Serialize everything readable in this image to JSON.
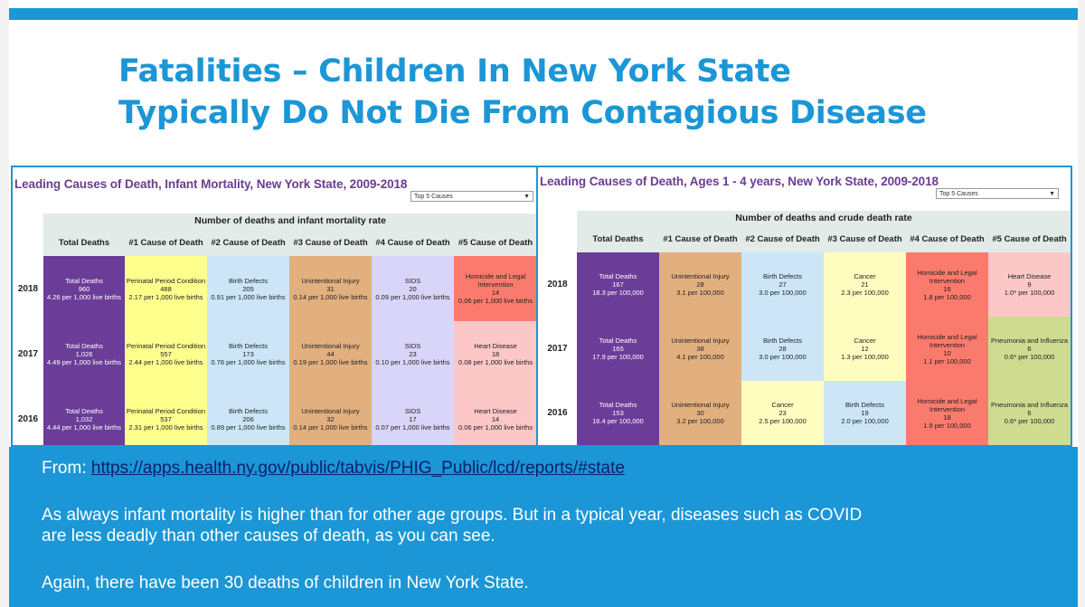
{
  "title": {
    "line1": "Fatalities – Children In New York State",
    "line2": "Typically Do Not Die From Contagious Disease"
  },
  "colors": {
    "accent": "#1b96d6",
    "total": "#6b3d98",
    "perinatal": "#ffff8e",
    "birth_defects": "#cce6f7",
    "unintentional": "#e2b07e",
    "sids": "#d8d5f8",
    "homicide": "#fa7b6d",
    "heart": "#fcc7c7",
    "cancer": "#fffcc0",
    "pneumonia": "#cfdb90"
  },
  "tables": [
    {
      "title": "Leading Causes of Death, Infant Mortality, New York State, 2009-2018",
      "select": "Top 5 Causes",
      "super_header": "Number of deaths and infant mortality rate",
      "headers": [
        "Total Deaths",
        "#1 Cause of Death",
        "#2 Cause of Death",
        "#3 Cause of Death",
        "#4 Cause of Death",
        "#5 Cause of Death"
      ],
      "rows": [
        {
          "year": "2018",
          "cells": [
            {
              "lines": [
                "Total Deaths",
                "960",
                "4.26 per 1,000 live births"
              ],
              "color": "total"
            },
            {
              "lines": [
                "Perinatal Period Condition",
                "488",
                "2.17 per 1,000 live births"
              ],
              "color": "perinatal"
            },
            {
              "lines": [
                "Birth Defects",
                "205",
                "0.91 per 1,000 live births"
              ],
              "color": "birth_defects"
            },
            {
              "lines": [
                "Unintentional Injury",
                "31",
                "0.14 per 1,000 live births"
              ],
              "color": "unintentional"
            },
            {
              "lines": [
                "SIDS",
                "20",
                "0.09 per 1,000 live births"
              ],
              "color": "sids"
            },
            {
              "lines": [
                "Homicide and Legal Intervention",
                "14",
                "0.06 per 1,000 live births"
              ],
              "color": "homicide"
            }
          ]
        },
        {
          "year": "2017",
          "cells": [
            {
              "lines": [
                "Total Deaths",
                "1,026",
                "4.49 per 1,000 live births"
              ],
              "color": "total"
            },
            {
              "lines": [
                "Perinatal Period Condition",
                "557",
                "2.44 per 1,000 live births"
              ],
              "color": "perinatal"
            },
            {
              "lines": [
                "Birth Defects",
                "173",
                "0.76 per 1,000 live births"
              ],
              "color": "birth_defects"
            },
            {
              "lines": [
                "Unintentional Injury",
                "44",
                "0.19 per 1,000 live births"
              ],
              "color": "unintentional"
            },
            {
              "lines": [
                "SIDS",
                "23",
                "0.10 per 1,000 live births"
              ],
              "color": "sids"
            },
            {
              "lines": [
                "Heart Disease",
                "18",
                "0.08 per 1,000 live births"
              ],
              "color": "heart"
            }
          ]
        },
        {
          "year": "2016",
          "cells": [
            {
              "lines": [
                "Total Deaths",
                "1,032",
                "4.44 per 1,000 live births"
              ],
              "color": "total"
            },
            {
              "lines": [
                "Perinatal Period Condition",
                "537",
                "2.31 per 1,000 live births"
              ],
              "color": "perinatal"
            },
            {
              "lines": [
                "Birth Defects",
                "206",
                "0.89 per 1,000 live births"
              ],
              "color": "birth_defects"
            },
            {
              "lines": [
                "Unintentional Injury",
                "32",
                "0.14 per 1,000 live births"
              ],
              "color": "unintentional"
            },
            {
              "lines": [
                "SIDS",
                "17",
                "0.07 per 1,000 live births"
              ],
              "color": "sids"
            },
            {
              "lines": [
                "Heart Disease",
                "14",
                "0.06 per 1,000 live births"
              ],
              "color": "heart"
            }
          ]
        }
      ]
    },
    {
      "title": "Leading Causes of Death, Ages 1 - 4 years, New York State, 2009-2018",
      "select": "Top 5 Causes",
      "super_header": "Number of deaths and crude death rate",
      "headers": [
        "Total Deaths",
        "#1 Cause of Death",
        "#2 Cause of Death",
        "#3 Cause of Death",
        "#4 Cause of Death",
        "#5 Cause of Death"
      ],
      "rows": [
        {
          "year": "2018",
          "cells": [
            {
              "lines": [
                "Total Deaths",
                "167",
                "18.3 per 100,000"
              ],
              "color": "total"
            },
            {
              "lines": [
                "Unintentional Injury",
                "28",
                "3.1 per 100,000"
              ],
              "color": "unintentional"
            },
            {
              "lines": [
                "Birth Defects",
                "27",
                "3.0 per 100,000"
              ],
              "color": "birth_defects"
            },
            {
              "lines": [
                "Cancer",
                "21",
                "2.3 per 100,000"
              ],
              "color": "cancer"
            },
            {
              "lines": [
                "Homicide and Legal Intervention",
                "16",
                "1.8 per 100,000"
              ],
              "color": "homicide"
            },
            {
              "lines": [
                "Heart Disease",
                "9",
                "1.0* per 100,000"
              ],
              "color": "heart"
            }
          ]
        },
        {
          "year": "2017",
          "cells": [
            {
              "lines": [
                "Total Deaths",
                "165",
                "17.9 per 100,000"
              ],
              "color": "total"
            },
            {
              "lines": [
                "Unintentional Injury",
                "38",
                "4.1 per 100,000"
              ],
              "color": "unintentional"
            },
            {
              "lines": [
                "Birth Defects",
                "28",
                "3.0 per 100,000"
              ],
              "color": "birth_defects"
            },
            {
              "lines": [
                "Cancer",
                "12",
                "1.3 per 100,000"
              ],
              "color": "cancer"
            },
            {
              "lines": [
                "Homicide and Legal Intervention",
                "10",
                "1.1 per 100,000"
              ],
              "color": "homicide"
            },
            {
              "lines": [
                "Pneumonia and Influenza",
                "6",
                "0.6* per 100,000"
              ],
              "color": "pneumonia"
            }
          ]
        },
        {
          "year": "2016",
          "cells": [
            {
              "lines": [
                "Total Deaths",
                "153",
                "16.4 per 100,000"
              ],
              "color": "total"
            },
            {
              "lines": [
                "Unintentional Injury",
                "30",
                "3.2 per 100,000"
              ],
              "color": "unintentional"
            },
            {
              "lines": [
                "Cancer",
                "23",
                "2.5 per 100,000"
              ],
              "color": "cancer"
            },
            {
              "lines": [
                "Birth Defects",
                "19",
                "2.0 per 100,000"
              ],
              "color": "birth_defects"
            },
            {
              "lines": [
                "Homicide and Legal Intervention",
                "18",
                "1.9 per 100,000"
              ],
              "color": "homicide"
            },
            {
              "lines": [
                "Pneumonia and Influenza",
                "6",
                "0.6* per 100,000"
              ],
              "color": "pneumonia"
            }
          ]
        }
      ]
    }
  ],
  "notes": {
    "from_label": "From: ",
    "link": "https://apps.health.ny.gov/public/tabvis/PHIG_Public/lcd/reports/#state",
    "para1_line1": "As always infant mortality is higher than for other age groups. But in a typical year, diseases such as COVID",
    "para1_line2": "are less deadly than other causes of death, as you can see.",
    "para2": "Again, there have been 30 deaths of children in New York State."
  }
}
